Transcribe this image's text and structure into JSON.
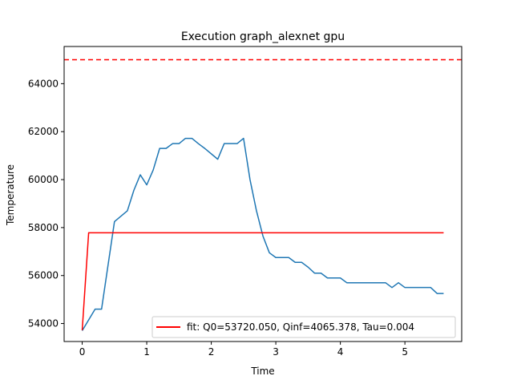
{
  "chart_data": {
    "type": "line",
    "title": "Execution graph_alexnet gpu",
    "xlabel": "Time",
    "ylabel": "Temperature",
    "xlim": [
      -0.28,
      5.88
    ],
    "ylim": [
      53250,
      65550
    ],
    "xticks": [
      0,
      1,
      2,
      3,
      4,
      5
    ],
    "yticks": [
      54000,
      56000,
      58000,
      60000,
      62000,
      64000
    ],
    "legend_position": "lower-right",
    "colors": {
      "measured": "#1f77b4",
      "fit": "#ff0000",
      "threshold": "#ff0000"
    },
    "threshold": {
      "y": 65000,
      "style": "dashed"
    },
    "series": [
      {
        "key": "measured",
        "x": [
          0,
          0.2,
          0.3,
          0.5,
          0.7,
          0.8,
          0.9,
          1.0,
          1.1,
          1.2,
          1.3,
          1.4,
          1.5,
          1.6,
          1.7,
          1.8,
          1.9,
          2.1,
          2.2,
          2.3,
          2.4,
          2.5,
          2.6,
          2.7,
          2.8,
          2.9,
          3.0,
          3.1,
          3.2,
          3.3,
          3.4,
          3.5,
          3.6,
          3.7,
          3.8,
          3.9,
          4.0,
          4.1,
          4.2,
          4.3,
          4.4,
          4.5,
          4.6,
          4.7,
          4.8,
          4.9,
          5.0,
          5.1,
          5.2,
          5.3,
          5.4,
          5.5,
          5.6
        ],
        "y": [
          53700,
          54600,
          54600,
          58250,
          58700,
          59550,
          60200,
          59780,
          60400,
          61300,
          61300,
          61500,
          61500,
          61720,
          61720,
          61500,
          61300,
          60850,
          61500,
          61500,
          61500,
          61720,
          60000,
          58700,
          57650,
          56950,
          56750,
          56750,
          56750,
          56550,
          56550,
          56350,
          56100,
          56100,
          55900,
          55900,
          55900,
          55700,
          55700,
          55700,
          55700,
          55700,
          55700,
          55700,
          55500,
          55700,
          55500,
          55500,
          55500,
          55500,
          55500,
          55250,
          55250
        ]
      },
      {
        "key": "fit",
        "name": "fit: Q0=53720.050, Qinf=4065.378, Tau=0.004",
        "x": [
          0,
          0.1,
          5.6
        ],
        "y": [
          53720,
          57785,
          57785
        ]
      }
    ]
  }
}
